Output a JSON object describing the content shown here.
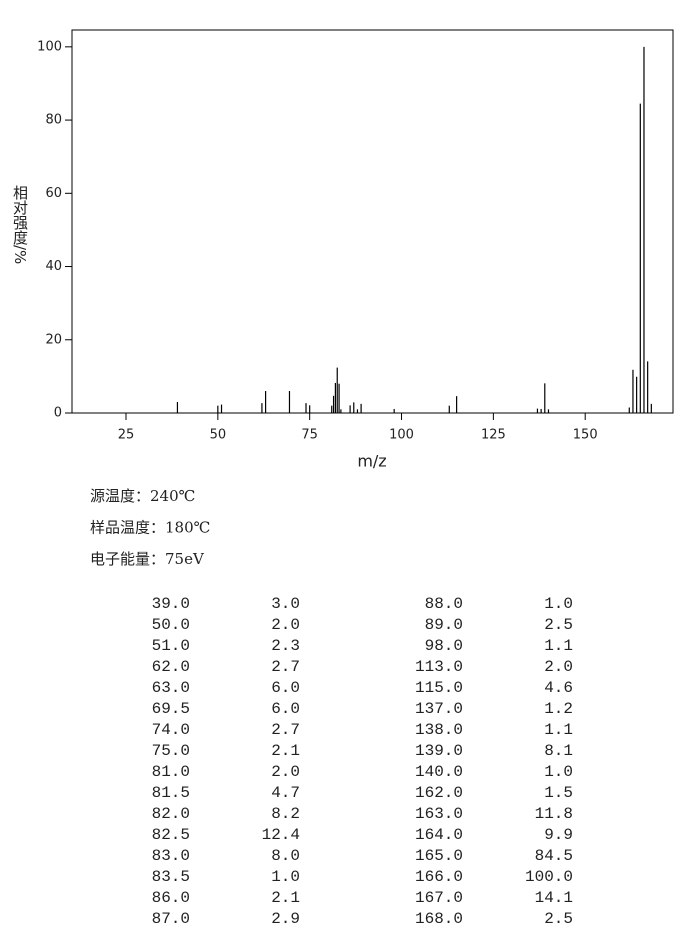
{
  "chart_data": {
    "type": "bar",
    "xlabel": "m/z",
    "ylabel": "相对强度/%",
    "x": [
      39,
      50,
      51,
      62,
      63,
      69.5,
      74,
      75,
      81,
      81.5,
      82,
      82.5,
      83,
      83.5,
      86,
      87,
      88,
      89,
      98,
      113,
      115,
      137,
      138,
      139,
      140,
      162,
      163,
      164,
      165,
      166,
      167,
      168
    ],
    "values": [
      3.0,
      2.0,
      2.3,
      2.7,
      6.0,
      6.0,
      2.7,
      2.1,
      2.0,
      4.7,
      8.2,
      12.4,
      8.0,
      1.0,
      2.1,
      2.9,
      1.0,
      2.5,
      1.1,
      2.0,
      4.6,
      1.2,
      1.1,
      8.1,
      1.0,
      1.5,
      11.8,
      9.9,
      84.5,
      100,
      14.1,
      2.5
    ],
    "color": "#000000",
    "xlim": [
      10.3,
      173.9
    ],
    "ylim": [
      0,
      104.6
    ],
    "xticks": [
      25,
      50,
      75,
      100,
      125,
      150
    ],
    "yticks": [
      0,
      20,
      40,
      60,
      80,
      100
    ]
  },
  "info": [
    "源温度：240℃",
    "样品温度：180℃",
    "电子能量：75eV"
  ],
  "table": {
    "rows": [
      [
        "39.0",
        "3.0"
      ],
      [
        "50.0",
        "2.0"
      ],
      [
        "51.0",
        "2.3"
      ],
      [
        "62.0",
        "2.7"
      ],
      [
        "63.0",
        "6.0"
      ],
      [
        "69.5",
        "6.0"
      ],
      [
        "74.0",
        "2.7"
      ],
      [
        "75.0",
        "2.1"
      ],
      [
        "81.0",
        "2.0"
      ],
      [
        "81.5",
        "4.7"
      ],
      [
        "82.0",
        "8.2"
      ],
      [
        "82.5",
        "12.4"
      ],
      [
        "83.0",
        "8.0"
      ],
      [
        "83.5",
        "1.0"
      ],
      [
        "86.0",
        "2.1"
      ],
      [
        "87.0",
        "2.9"
      ],
      [
        "88.0",
        "1.0"
      ],
      [
        "89.0",
        "2.5"
      ],
      [
        "98.0",
        "1.1"
      ],
      [
        "113.0",
        "2.0"
      ],
      [
        "115.0",
        "4.6"
      ],
      [
        "137.0",
        "1.2"
      ],
      [
        "138.0",
        "1.1"
      ],
      [
        "139.0",
        "8.1"
      ],
      [
        "140.0",
        "1.0"
      ],
      [
        "162.0",
        "1.5"
      ],
      [
        "163.0",
        "11.8"
      ],
      [
        "164.0",
        "9.9"
      ],
      [
        "165.0",
        "84.5"
      ],
      [
        "166.0",
        "100.0"
      ],
      [
        "167.0",
        "14.1"
      ],
      [
        "168.0",
        "2.5"
      ]
    ]
  }
}
